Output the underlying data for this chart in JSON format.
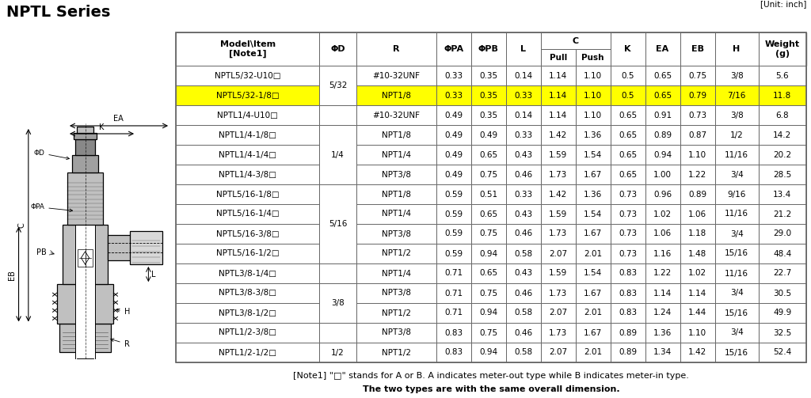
{
  "title": "NPTL Series",
  "unit_label": "[Unit: inch]",
  "note1": "[Note1] \"□\" stands for A or B. A indicates meter-out type while B indicates meter-in type.",
  "note2": "The two types are with the same overall dimension.",
  "col_props": [
    1.65,
    0.42,
    0.92,
    0.4,
    0.4,
    0.4,
    0.4,
    0.4,
    0.4,
    0.4,
    0.4,
    0.5,
    0.55
  ],
  "rows": [
    [
      "NPTL5/32-U10□",
      "5/32",
      "#10-32UNF",
      "0.33",
      "0.35",
      "0.14",
      "1.14",
      "1.10",
      "0.5",
      "0.65",
      "0.75",
      "3/8",
      "5.6",
      false
    ],
    [
      "NPTL5/32-1/8□",
      "5/32",
      "NPT1/8",
      "0.33",
      "0.35",
      "0.33",
      "1.14",
      "1.10",
      "0.5",
      "0.65",
      "0.79",
      "7/16",
      "11.8",
      true
    ],
    [
      "NPTL1/4-U10□",
      "",
      "#10-32UNF",
      "0.49",
      "0.35",
      "0.14",
      "1.14",
      "1.10",
      "0.65",
      "0.91",
      "0.73",
      "3/8",
      "6.8",
      false
    ],
    [
      "NPTL1/4-1/8□",
      "1/4",
      "NPT1/8",
      "0.49",
      "0.49",
      "0.33",
      "1.42",
      "1.36",
      "0.65",
      "0.89",
      "0.87",
      "1/2",
      "14.2",
      false
    ],
    [
      "NPTL1/4-1/4□",
      "",
      "NPT1/4",
      "0.49",
      "0.65",
      "0.43",
      "1.59",
      "1.54",
      "0.65",
      "0.94",
      "1.10",
      "11/16",
      "20.2",
      false
    ],
    [
      "NPTL1/4-3/8□",
      "",
      "NPT3/8",
      "0.49",
      "0.75",
      "0.46",
      "1.73",
      "1.67",
      "0.65",
      "1.00",
      "1.22",
      "3/4",
      "28.5",
      false
    ],
    [
      "NPTL5/16-1/8□",
      "",
      "NPT1/8",
      "0.59",
      "0.51",
      "0.33",
      "1.42",
      "1.36",
      "0.73",
      "0.96",
      "0.89",
      "9/16",
      "13.4",
      false
    ],
    [
      "NPTL5/16-1/4□",
      "5/16",
      "NPT1/4",
      "0.59",
      "0.65",
      "0.43",
      "1.59",
      "1.54",
      "0.73",
      "1.02",
      "1.06",
      "11/16",
      "21.2",
      false
    ],
    [
      "NPTL5/16-3/8□",
      "",
      "NPT3/8",
      "0.59",
      "0.75",
      "0.46",
      "1.73",
      "1.67",
      "0.73",
      "1.06",
      "1.18",
      "3/4",
      "29.0",
      false
    ],
    [
      "NPTL5/16-1/2□",
      "",
      "NPT1/2",
      "0.59",
      "0.94",
      "0.58",
      "2.07",
      "2.01",
      "0.73",
      "1.16",
      "1.48",
      "15/16",
      "48.4",
      false
    ],
    [
      "NPTL3/8-1/4□",
      "",
      "NPT1/4",
      "0.71",
      "0.65",
      "0.43",
      "1.59",
      "1.54",
      "0.83",
      "1.22",
      "1.02",
      "11/16",
      "22.7",
      false
    ],
    [
      "NPTL3/8-3/8□",
      "3/8",
      "NPT3/8",
      "0.71",
      "0.75",
      "0.46",
      "1.73",
      "1.67",
      "0.83",
      "1.14",
      "1.14",
      "3/4",
      "30.5",
      false
    ],
    [
      "NPTL3/8-1/2□",
      "",
      "NPT1/2",
      "0.71",
      "0.94",
      "0.58",
      "2.07",
      "2.01",
      "0.83",
      "1.24",
      "1.44",
      "15/16",
      "49.9",
      false
    ],
    [
      "NPTL1/2-3/8□",
      "",
      "NPT3/8",
      "0.83",
      "0.75",
      "0.46",
      "1.73",
      "1.67",
      "0.89",
      "1.36",
      "1.10",
      "3/4",
      "32.5",
      false
    ],
    [
      "NPTL1/2-1/2□",
      "1/2",
      "NPT1/2",
      "0.83",
      "0.94",
      "0.58",
      "2.07",
      "2.01",
      "0.89",
      "1.34",
      "1.42",
      "15/16",
      "52.4",
      false
    ]
  ],
  "phi_d_groups": [
    {
      "label": "5/32",
      "rows": [
        0,
        1
      ]
    },
    {
      "label": "",
      "rows": [
        2
      ]
    },
    {
      "label": "1/4",
      "rows": [
        3,
        4,
        5
      ]
    },
    {
      "label": "5/16",
      "rows": [
        6,
        7,
        8,
        9
      ]
    },
    {
      "label": "",
      "rows": [
        10
      ]
    },
    {
      "label": "3/8",
      "rows": [
        11,
        12
      ]
    },
    {
      "label": "",
      "rows": [
        13
      ]
    },
    {
      "label": "1/2",
      "rows": [
        14
      ]
    }
  ],
  "highlight_row": 1,
  "highlight_color": "#FFFF00",
  "border_color": "#666666",
  "text_color": "#000000",
  "header_font_size": 8.0,
  "cell_font_size": 7.5,
  "note_font_size": 8.0,
  "title_font_size": 14
}
